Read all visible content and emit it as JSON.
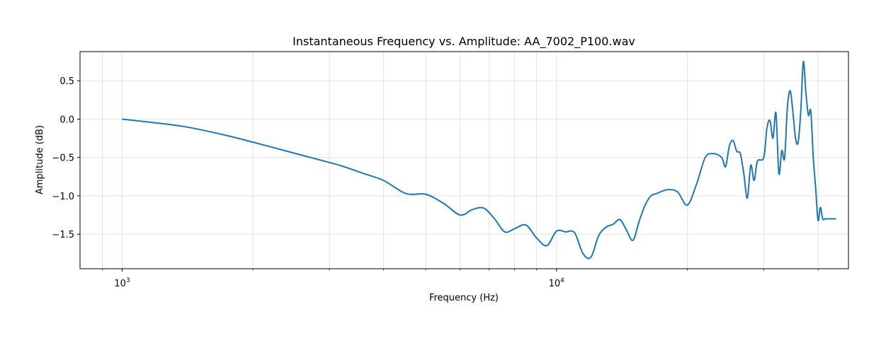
{
  "chart_data": {
    "type": "line",
    "title": "Instantaneous Frequency vs. Amplitude: AA_7002_P100.wav",
    "xlabel": "Frequency (Hz)",
    "ylabel": "Amplitude (dB)",
    "xscale": "log",
    "xlim": [
      800,
      47000
    ],
    "ylim": [
      -1.95,
      0.88
    ],
    "grid": true,
    "line_color": "#1f77b4",
    "x_major_ticks": [
      {
        "value": 1000,
        "base": "10",
        "exp": "3"
      },
      {
        "value": 10000,
        "base": "10",
        "exp": "4"
      }
    ],
    "x_minor_ticks": [
      900,
      2000,
      3000,
      4000,
      5000,
      6000,
      7000,
      8000,
      9000,
      20000,
      30000,
      40000
    ],
    "y_ticks": [
      {
        "value": 0.5,
        "label": "0.5"
      },
      {
        "value": 0.0,
        "label": "0.0"
      },
      {
        "value": -0.5,
        "label": "−0.5"
      },
      {
        "value": -1.0,
        "label": "−1.0"
      },
      {
        "value": -1.5,
        "label": "−1.5"
      }
    ],
    "series": [
      {
        "x": [
          1000,
          1200,
          1400,
          1700,
          2000,
          2400,
          2800,
          3200,
          3600,
          4000,
          4500,
          5000,
          5500,
          6000,
          6400,
          6800,
          7200,
          7600,
          8000,
          8500,
          9000,
          9500,
          10000,
          10500,
          11000,
          11500,
          12000,
          12500,
          13000,
          13500,
          14000,
          14500,
          15000,
          15500,
          16000,
          16500,
          17000,
          18000,
          19000,
          20000,
          21000,
          22000,
          23000,
          24000,
          24500,
          25000,
          25500,
          26000,
          26500,
          27000,
          27500,
          28000,
          28500,
          29000,
          30000,
          30500,
          31000,
          31500,
          32000,
          32500,
          33000,
          33500,
          34000,
          34500,
          35000,
          35500,
          36000,
          36500,
          37000,
          37500,
          38000,
          38500,
          39000,
          39500,
          40000,
          40500,
          41000,
          41500,
          42000,
          42500,
          43000,
          43500,
          44000
        ],
        "y": [
          0.0,
          -0.05,
          -0.1,
          -0.2,
          -0.3,
          -0.42,
          -0.52,
          -0.61,
          -0.71,
          -0.8,
          -0.97,
          -0.98,
          -1.1,
          -1.25,
          -1.18,
          -1.16,
          -1.3,
          -1.47,
          -1.43,
          -1.38,
          -1.55,
          -1.65,
          -1.46,
          -1.47,
          -1.48,
          -1.75,
          -1.8,
          -1.52,
          -1.41,
          -1.37,
          -1.31,
          -1.45,
          -1.58,
          -1.33,
          -1.12,
          -1.0,
          -0.97,
          -0.92,
          -0.95,
          -1.12,
          -0.85,
          -0.5,
          -0.45,
          -0.5,
          -0.62,
          -0.35,
          -0.28,
          -0.42,
          -0.45,
          -0.72,
          -1.03,
          -0.6,
          -0.8,
          -0.55,
          -0.5,
          -0.12,
          -0.02,
          -0.25,
          0.08,
          -0.71,
          -0.41,
          -0.51,
          0.15,
          0.37,
          0.1,
          -0.25,
          -0.3,
          0.1,
          0.75,
          0.35,
          0.05,
          0.1,
          -0.5,
          -0.9,
          -1.32,
          -1.15,
          -1.3,
          -1.3,
          -1.3,
          -1.3,
          -1.3,
          -1.3,
          -1.3
        ]
      }
    ]
  }
}
